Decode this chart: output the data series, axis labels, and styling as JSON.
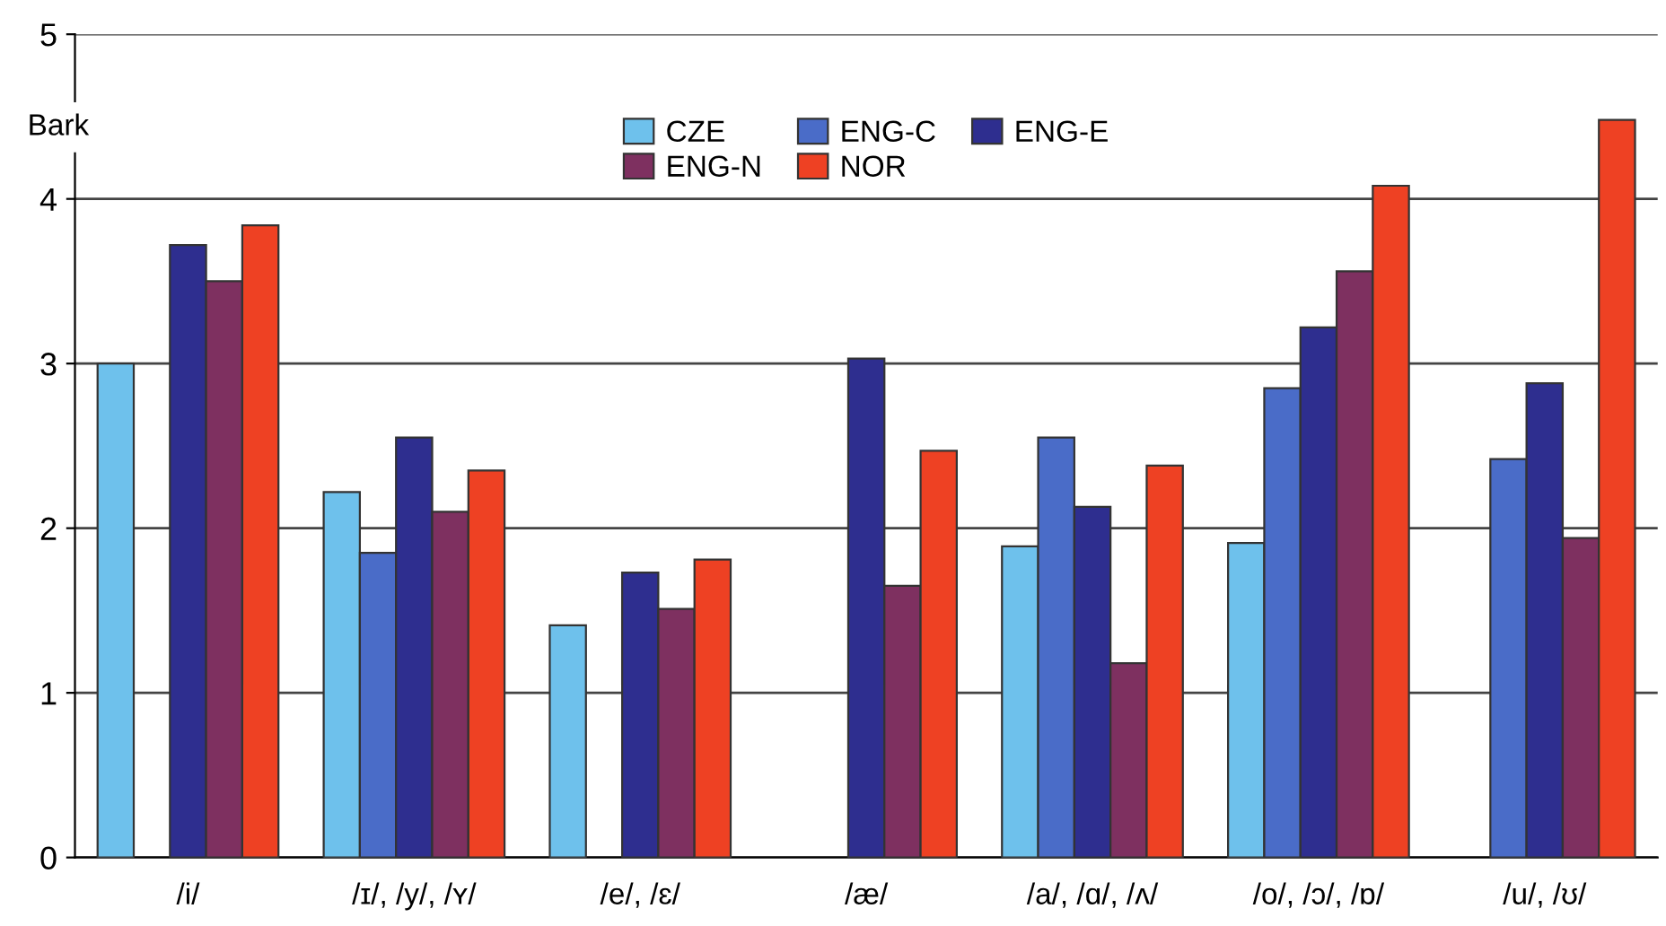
{
  "chart_data": {
    "type": "bar",
    "ylabel": "Bark",
    "categories": [
      "/i/",
      "/ɪ/, /y/, /ʏ/",
      "/e/, /ɛ/",
      "/æ/",
      "/a/, /ɑ/, /ʌ/",
      "/o/, /ɔ/, /ɒ/",
      "/u/, /ʊ/"
    ],
    "series": [
      {
        "name": "CZE",
        "color": "#6ec1ec",
        "values": [
          3.0,
          2.22,
          1.41,
          null,
          1.89,
          1.91,
          null
        ]
      },
      {
        "name": "ENG-C",
        "color": "#4a6cc8",
        "values": [
          null,
          1.85,
          null,
          null,
          2.55,
          2.85,
          2.42
        ]
      },
      {
        "name": "ENG-E",
        "color": "#2e2e8f",
        "values": [
          3.72,
          2.55,
          1.73,
          3.03,
          2.13,
          3.22,
          2.88
        ]
      },
      {
        "name": "ENG-N",
        "color": "#7e3060",
        "values": [
          3.5,
          2.1,
          1.51,
          1.65,
          1.18,
          3.56,
          1.94
        ]
      },
      {
        "name": "NOR",
        "color": "#ee4123",
        "values": [
          3.84,
          2.35,
          1.81,
          2.47,
          2.38,
          4.08,
          4.48
        ]
      }
    ],
    "ylim": [
      0,
      5
    ],
    "yticks": [
      0,
      1,
      2,
      3,
      4,
      5
    ],
    "grid": "y",
    "legend": "top"
  }
}
